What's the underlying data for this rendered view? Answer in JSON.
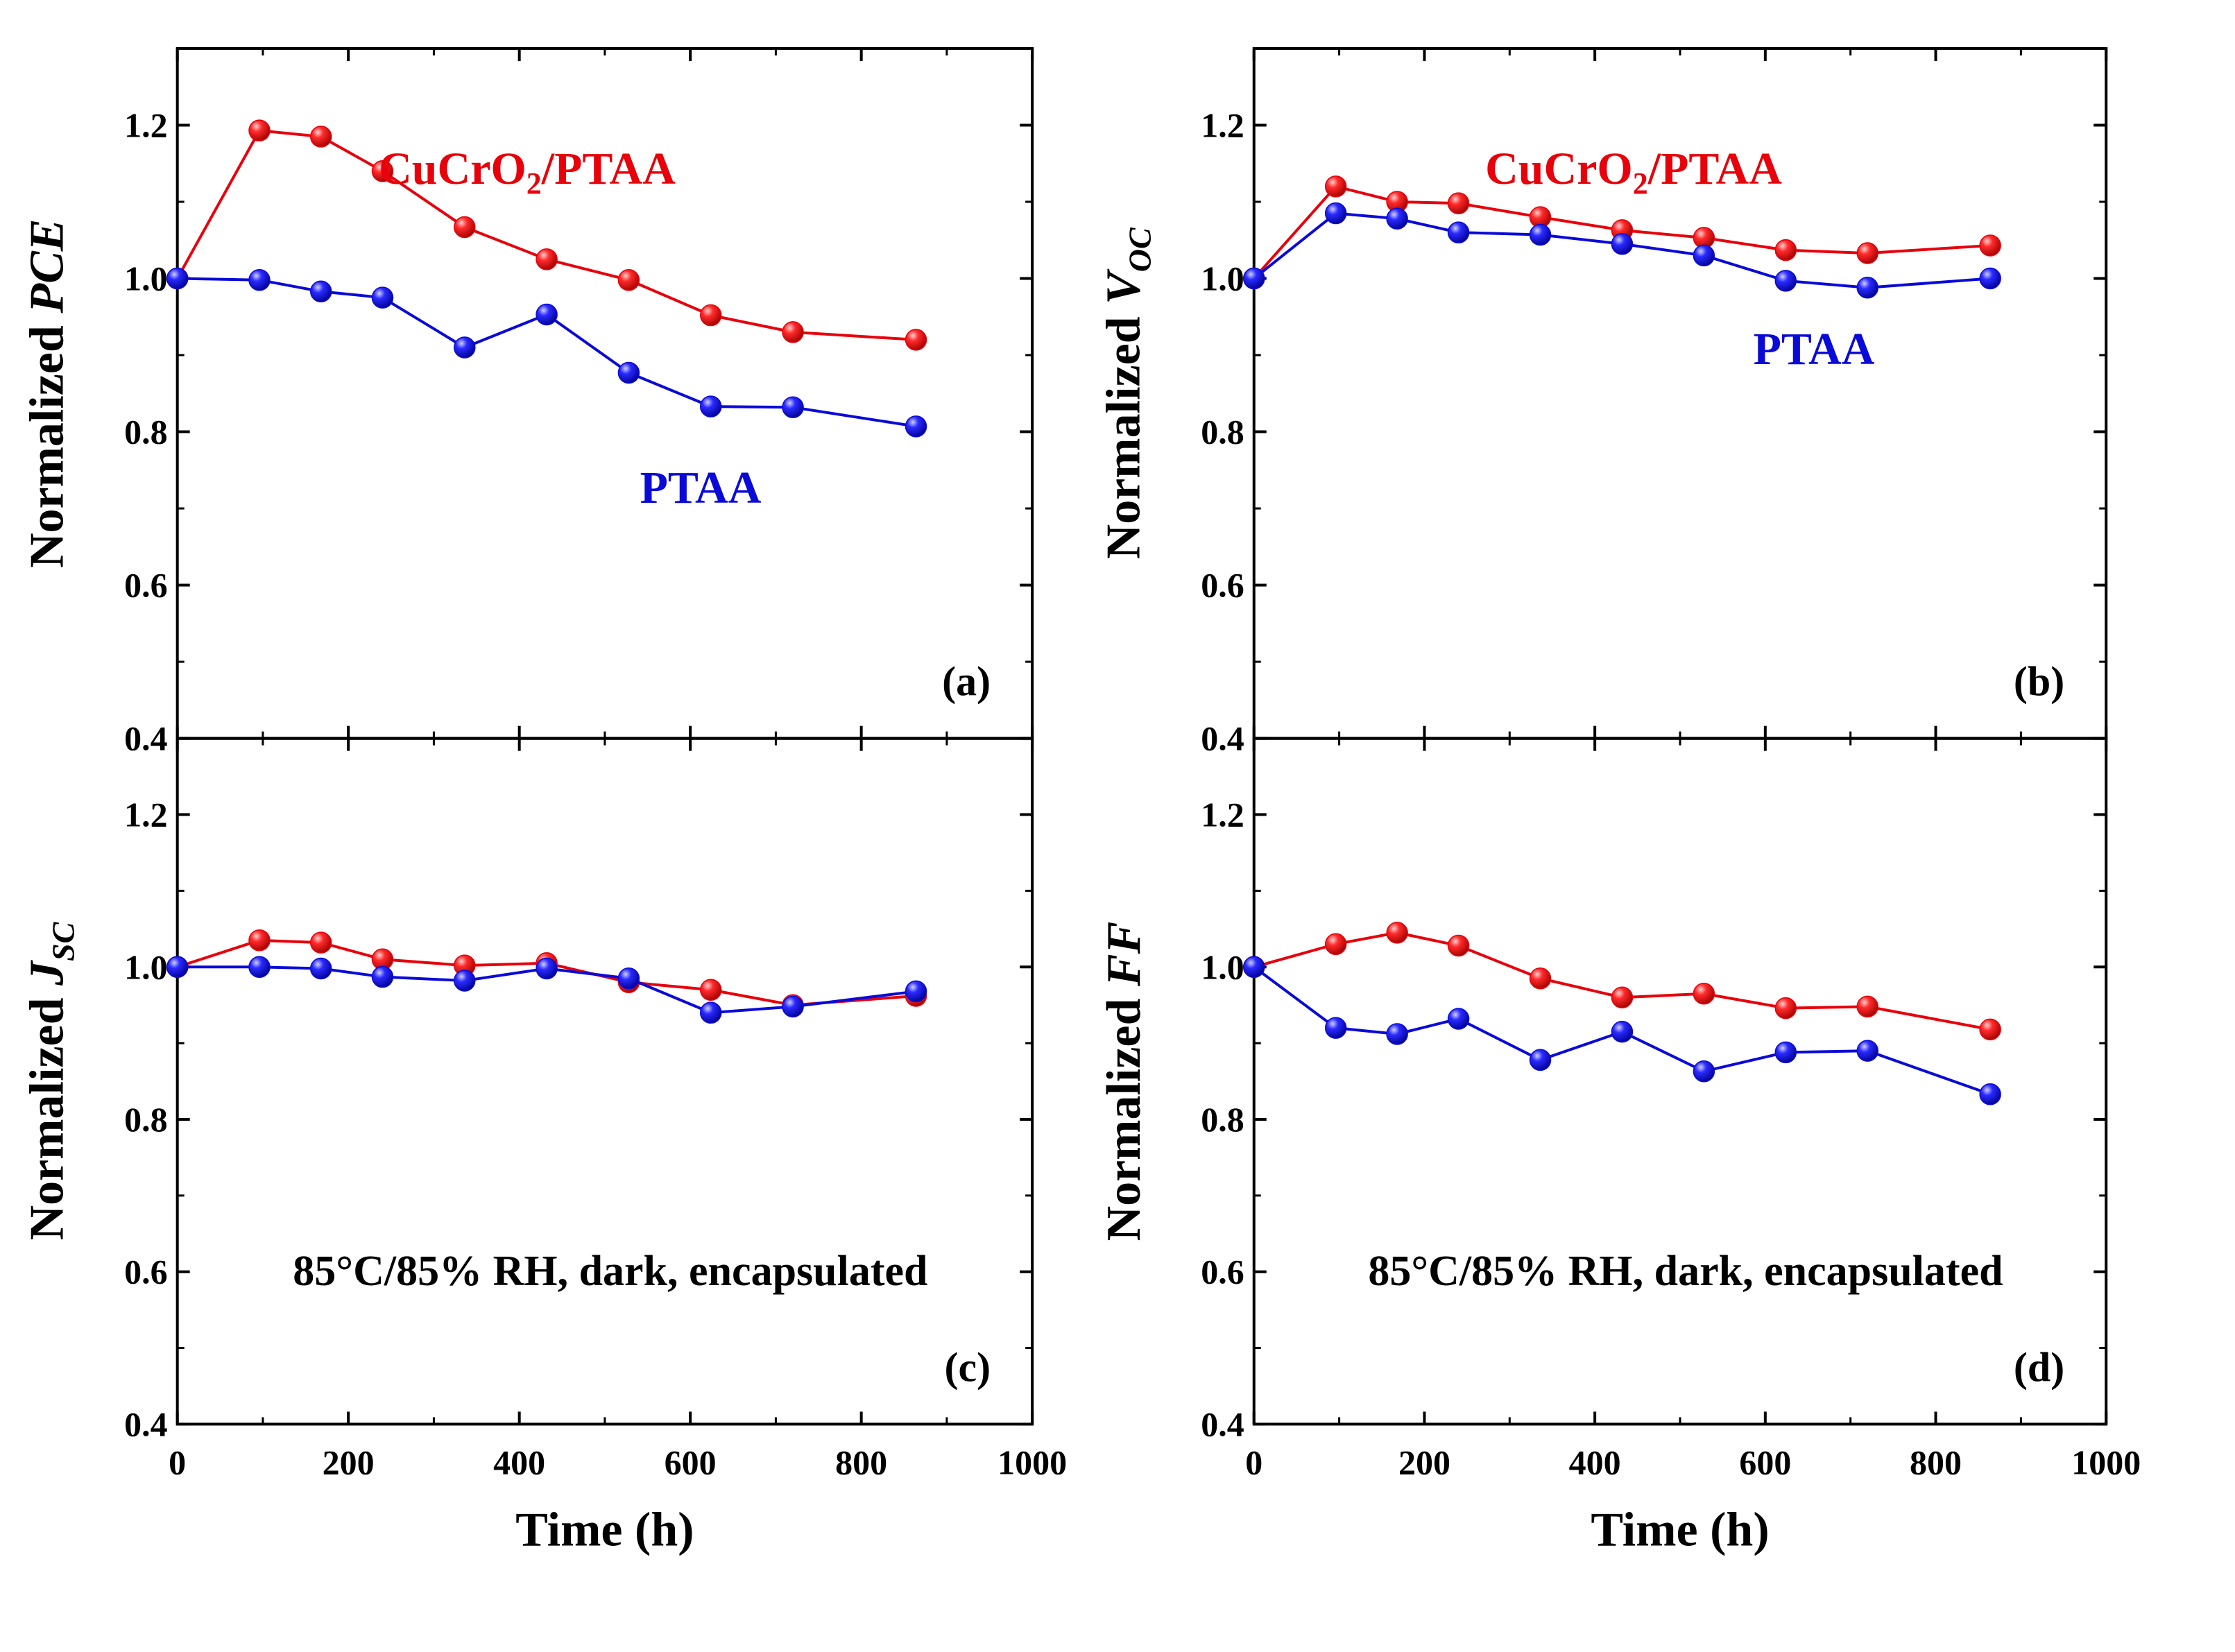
{
  "colors": {
    "cucro2_ptaa": "#e8000b",
    "ptaa": "#0a0ad8",
    "axis": "#000000"
  },
  "shared": {
    "x_axis_title": "Time (h)",
    "x_ticks": [
      "0",
      "200",
      "400",
      "600",
      "800",
      "1000"
    ],
    "y_ticks": [
      "0.4",
      "0.6",
      "0.8",
      "1.0",
      "1.2"
    ],
    "condition": "85°C/85% RH, dark, encapsulated"
  },
  "chart_data": [
    {
      "type": "line",
      "panel": "(a)",
      "ylabel": "Normalized PCE",
      "ylabel_main": "Normalized ",
      "ylabel_italic": "PCE",
      "ylabel_sub": "",
      "xlabel": "Time (h)",
      "xlim": [
        0,
        1000
      ],
      "ylim": [
        0.4,
        1.3
      ],
      "x": [
        0,
        96,
        168,
        240,
        336,
        432,
        528,
        624,
        720,
        864
      ],
      "series": [
        {
          "name": "CuCrO2/PTAA",
          "values": [
            1.0,
            1.193,
            1.185,
            1.14,
            1.067,
            1.025,
            0.998,
            0.952,
            0.93,
            0.92
          ]
        },
        {
          "name": "PTAA",
          "values": [
            1.0,
            0.998,
            0.983,
            0.975,
            0.91,
            0.953,
            0.877,
            0.833,
            0.832,
            0.807
          ]
        }
      ],
      "labels": {
        "series1": {
          "main": "CuCrO",
          "sub": "2",
          "tail": "/PTAA"
        },
        "series2": "PTAA"
      }
    },
    {
      "type": "line",
      "panel": "(b)",
      "ylabel": "Normalized VOC",
      "ylabel_main": "Normalized ",
      "ylabel_italic": "V",
      "ylabel_sub": "OC",
      "xlabel": "",
      "xlim": [
        0,
        1000
      ],
      "ylim": [
        0.4,
        1.3
      ],
      "x": [
        0,
        96,
        168,
        240,
        336,
        432,
        528,
        624,
        720,
        864
      ],
      "series": [
        {
          "name": "CuCrO2/PTAA",
          "values": [
            1.0,
            1.12,
            1.1,
            1.098,
            1.08,
            1.063,
            1.053,
            1.037,
            1.033,
            1.043
          ]
        },
        {
          "name": "PTAA",
          "values": [
            1.0,
            1.085,
            1.078,
            1.06,
            1.057,
            1.045,
            1.03,
            0.997,
            0.988,
            1.0
          ]
        }
      ],
      "labels": {
        "series1": {
          "main": "CuCrO",
          "sub": "2",
          "tail": "/PTAA"
        },
        "series2": "PTAA"
      }
    },
    {
      "type": "line",
      "panel": "(c)",
      "ylabel": "Normalized JSC",
      "ylabel_main": "Normalized ",
      "ylabel_italic": "J",
      "ylabel_sub": "SC",
      "xlabel": "Time (h)",
      "xlim": [
        0,
        1000
      ],
      "ylim": [
        0.4,
        1.3
      ],
      "x": [
        0,
        96,
        168,
        240,
        336,
        432,
        528,
        624,
        720,
        864
      ],
      "series": [
        {
          "name": "CuCrO2/PTAA",
          "values": [
            1.0,
            1.035,
            1.032,
            1.01,
            1.002,
            1.005,
            0.98,
            0.97,
            0.95,
            0.962
          ]
        },
        {
          "name": "PTAA",
          "values": [
            1.0,
            1.0,
            0.998,
            0.987,
            0.982,
            0.998,
            0.985,
            0.94,
            0.948,
            0.968
          ]
        }
      ]
    },
    {
      "type": "line",
      "panel": "(d)",
      "ylabel": "Normalized FF",
      "ylabel_main": "Normalized ",
      "ylabel_italic": "FF",
      "ylabel_sub": "",
      "xlabel": "Time (h)",
      "xlim": [
        0,
        1000
      ],
      "ylim": [
        0.4,
        1.3
      ],
      "x": [
        0,
        96,
        168,
        240,
        336,
        432,
        528,
        624,
        720,
        864
      ],
      "series": [
        {
          "name": "CuCrO2/PTAA",
          "values": [
            1.0,
            1.03,
            1.045,
            1.028,
            0.985,
            0.96,
            0.965,
            0.946,
            0.948,
            0.918
          ]
        },
        {
          "name": "PTAA",
          "values": [
            1.0,
            0.92,
            0.912,
            0.932,
            0.878,
            0.915,
            0.863,
            0.888,
            0.89,
            0.833
          ]
        }
      ]
    }
  ]
}
